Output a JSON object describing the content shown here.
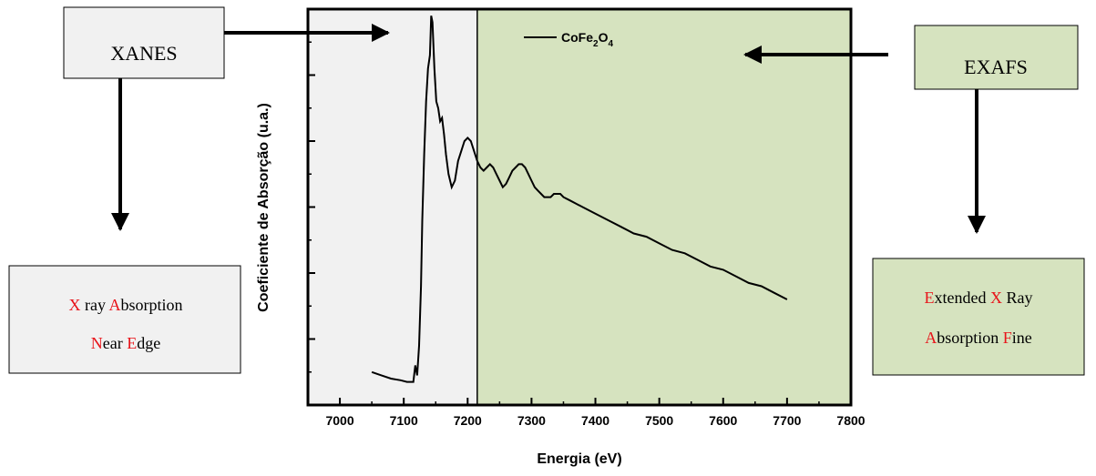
{
  "chart_data": {
    "type": "line",
    "title": "",
    "xlabel": "Energia (eV)",
    "ylabel": "Coeficiente de Absorção (u.a.)",
    "xlim": [
      6950,
      7800
    ],
    "ylim": [
      0,
      1.2
    ],
    "x_ticks": [
      7000,
      7100,
      7200,
      7300,
      7400,
      7500,
      7600,
      7700,
      7800
    ],
    "y_tick_labels_shown": false,
    "grid": false,
    "legend": {
      "position": "top-center",
      "entries": [
        "CoFe2O4"
      ]
    },
    "legend_label": {
      "main": "CoFe",
      "sub1": "2",
      "mid": "O",
      "sub2": "4"
    },
    "regions": [
      {
        "name": "XANES",
        "x_range": [
          6950,
          7215
        ],
        "color": "#f1f1f1"
      },
      {
        "name": "EXAFS",
        "x_range": [
          7215,
          7800
        ],
        "color": "#d6e3bf"
      }
    ],
    "series": [
      {
        "name": "CoFe2O4",
        "color": "#000000",
        "x": [
          7050,
          7065,
          7080,
          7095,
          7105,
          7115,
          7118,
          7121,
          7124,
          7127,
          7129,
          7132,
          7135,
          7138,
          7141,
          7143,
          7145,
          7148,
          7151,
          7154,
          7157,
          7160,
          7163,
          7166,
          7170,
          7175,
          7180,
          7185,
          7190,
          7195,
          7200,
          7205,
          7210,
          7215,
          7220,
          7225,
          7230,
          7235,
          7240,
          7245,
          7250,
          7255,
          7260,
          7265,
          7270,
          7275,
          7280,
          7285,
          7290,
          7295,
          7300,
          7305,
          7310,
          7315,
          7320,
          7325,
          7330,
          7335,
          7340,
          7345,
          7350,
          7360,
          7370,
          7380,
          7390,
          7400,
          7420,
          7440,
          7460,
          7480,
          7500,
          7520,
          7540,
          7560,
          7580,
          7600,
          7620,
          7640,
          7660,
          7680,
          7700
        ],
        "y": [
          0.1,
          0.09,
          0.08,
          0.075,
          0.07,
          0.07,
          0.12,
          0.09,
          0.18,
          0.36,
          0.56,
          0.76,
          0.92,
          1.02,
          1.06,
          1.18,
          1.16,
          1.02,
          0.92,
          0.9,
          0.86,
          0.87,
          0.82,
          0.76,
          0.7,
          0.66,
          0.68,
          0.74,
          0.77,
          0.8,
          0.81,
          0.8,
          0.77,
          0.74,
          0.72,
          0.71,
          0.72,
          0.73,
          0.72,
          0.7,
          0.68,
          0.66,
          0.67,
          0.69,
          0.71,
          0.72,
          0.73,
          0.73,
          0.72,
          0.7,
          0.68,
          0.66,
          0.65,
          0.64,
          0.63,
          0.63,
          0.63,
          0.64,
          0.64,
          0.64,
          0.63,
          0.62,
          0.61,
          0.6,
          0.59,
          0.58,
          0.56,
          0.54,
          0.52,
          0.51,
          0.49,
          0.47,
          0.46,
          0.44,
          0.42,
          0.41,
          0.39,
          0.37,
          0.36,
          0.34,
          0.32
        ]
      }
    ],
    "annotations": {
      "xanes": {
        "label": "XANES",
        "desc_line1": [
          {
            "t": "X",
            "red": true
          },
          {
            "t": " ray ",
            "red": false
          },
          {
            "t": "A",
            "red": true
          },
          {
            "t": "bsorption",
            "red": false
          }
        ],
        "desc_line2": [
          {
            "t": "N",
            "red": true
          },
          {
            "t": "ear ",
            "red": false
          },
          {
            "t": "E",
            "red": true
          },
          {
            "t": "dge",
            "red": false
          }
        ]
      },
      "exafs": {
        "label": "EXAFS",
        "desc_line1": [
          {
            "t": "E",
            "red": true
          },
          {
            "t": "xtended ",
            "red": false
          },
          {
            "t": "X",
            "red": true
          },
          {
            "t": " Ray",
            "red": false
          }
        ],
        "desc_line2": [
          {
            "t": "A",
            "red": true
          },
          {
            "t": "bsorption ",
            "red": false
          },
          {
            "t": "F",
            "red": true
          },
          {
            "t": "ine",
            "red": false
          }
        ]
      }
    }
  }
}
